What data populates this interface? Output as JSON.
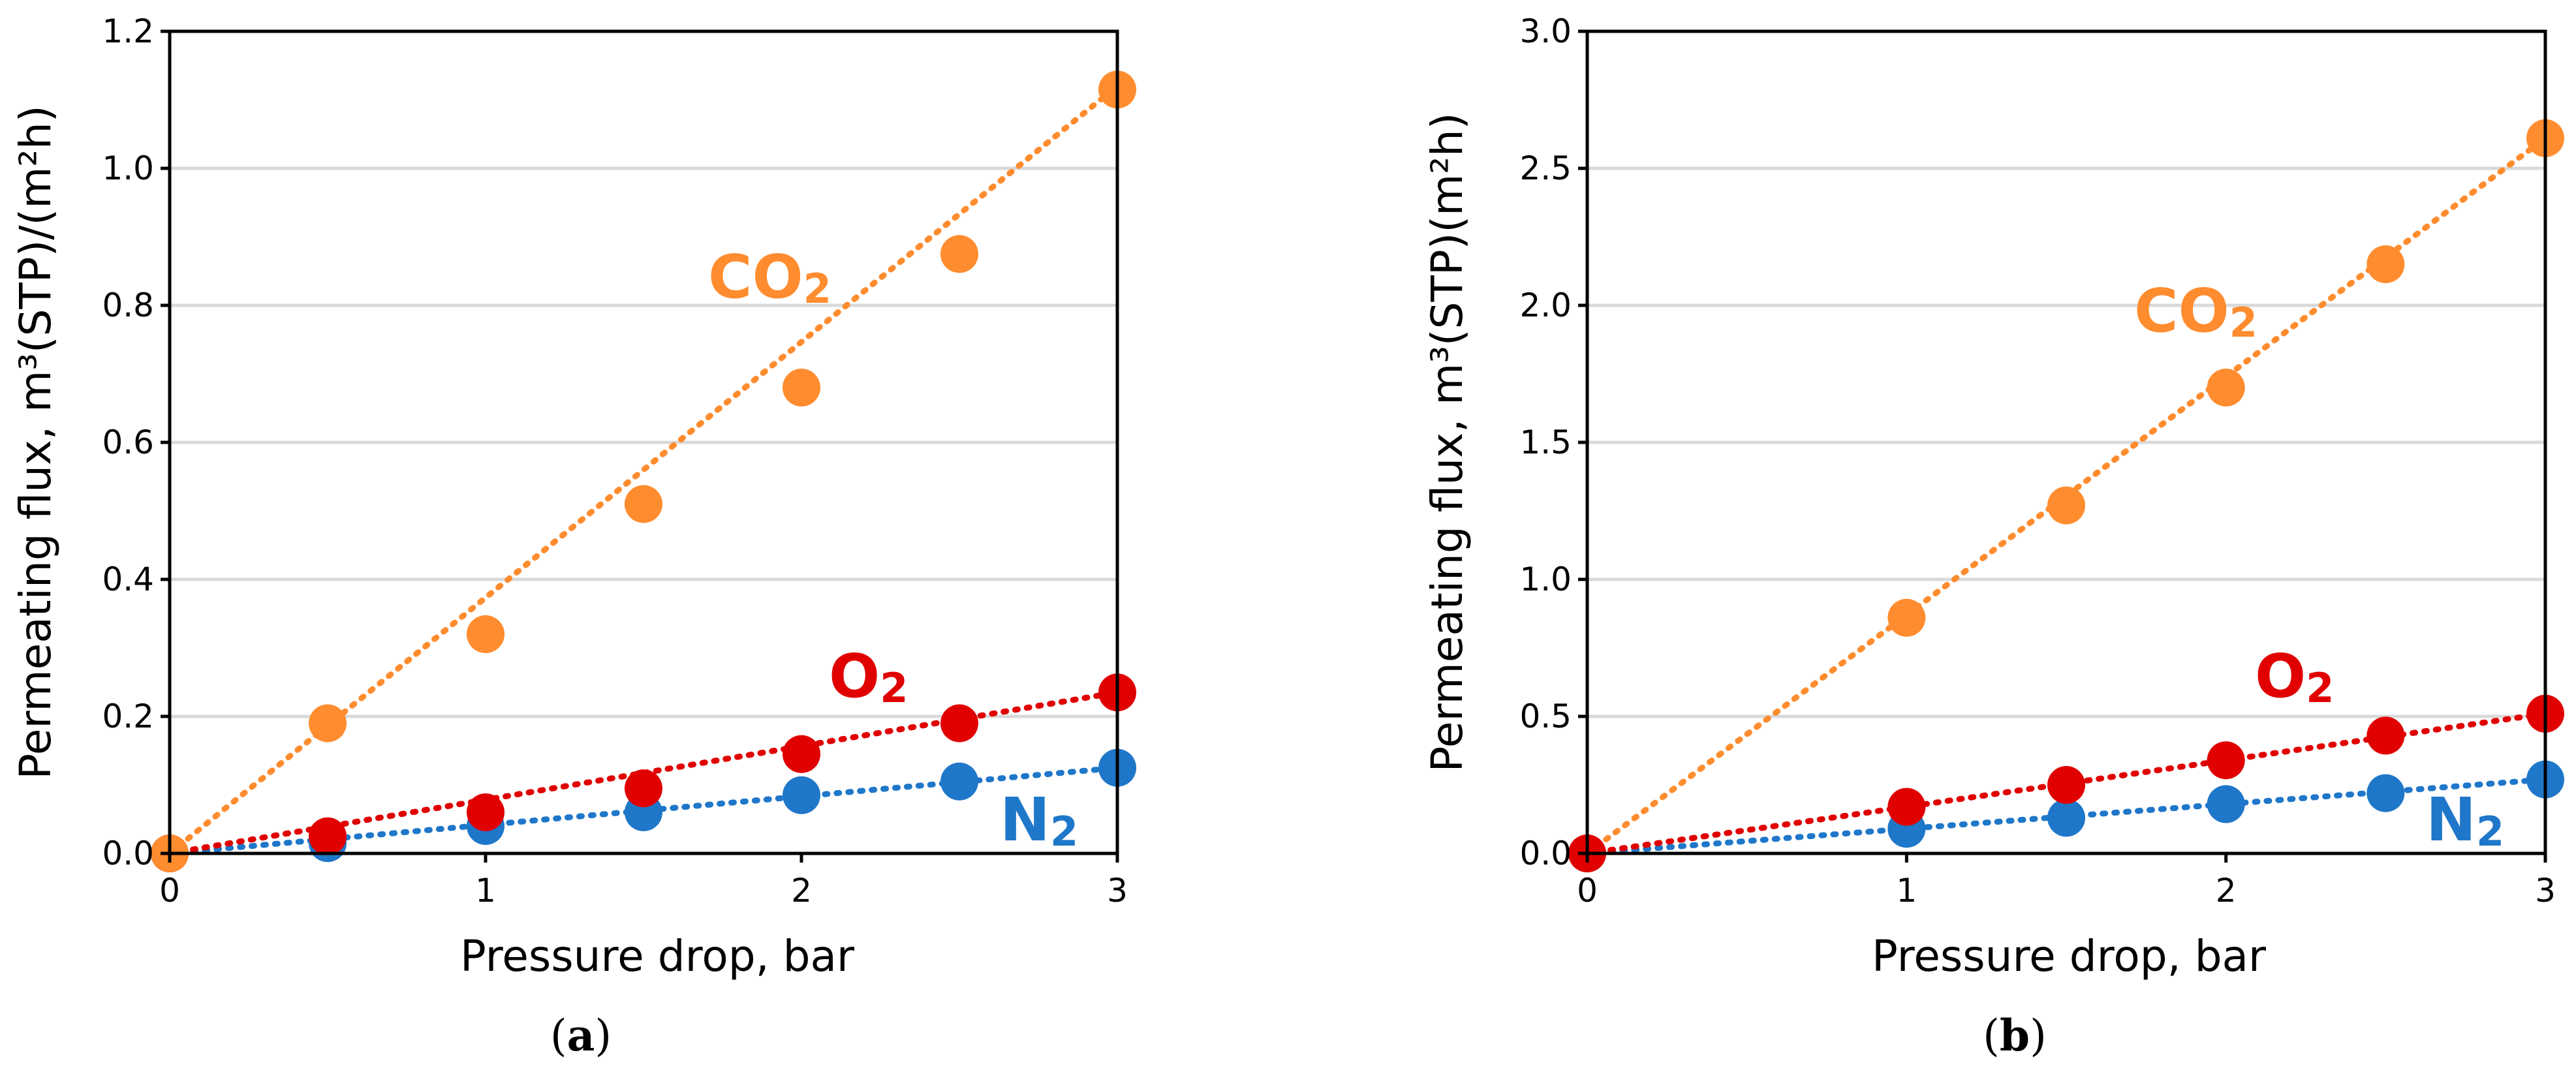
{
  "chart_data": [
    {
      "type": "scatter",
      "panel_label": "a",
      "xlabel": "Pressure drop, bar",
      "ylabel": "Permeating flux, m³(STP)/(m²h)",
      "xlim": [
        0,
        3
      ],
      "ylim": [
        0,
        1.2
      ],
      "xticks": [
        "0",
        "1",
        "2",
        "3"
      ],
      "yticks": [
        "0.0",
        "0.2",
        "0.4",
        "0.6",
        "0.8",
        "1.0",
        "1.2"
      ],
      "grid": true,
      "series": [
        {
          "name": "N2",
          "label_main": "N",
          "label_sub": "2",
          "color": "#1f77c9",
          "x": [
            0,
            0.5,
            1,
            1.5,
            2,
            2.5,
            3
          ],
          "y": [
            0,
            0.015,
            0.04,
            0.06,
            0.085,
            0.105,
            0.125
          ],
          "trend_end": 0.125
        },
        {
          "name": "O2",
          "label_main": "O",
          "label_sub": "2",
          "color": "#e00000",
          "x": [
            0,
            0.5,
            1,
            1.5,
            2,
            2.5,
            3
          ],
          "y": [
            0,
            0.025,
            0.06,
            0.095,
            0.145,
            0.19,
            0.235
          ],
          "trend_end": 0.235
        },
        {
          "name": "CO2",
          "label_main": "CO",
          "label_sub": "2",
          "color": "#ff8c2e",
          "x": [
            0,
            0.5,
            1,
            1.5,
            2,
            2.5,
            3
          ],
          "y": [
            0,
            0.19,
            0.32,
            0.51,
            0.68,
            0.875,
            1.115
          ],
          "trend_end": 1.12
        }
      ]
    },
    {
      "type": "scatter",
      "panel_label": "b",
      "xlabel": "Pressure drop, bar",
      "ylabel": "Permeating flux, m³(STP)(m²h)",
      "xlim": [
        0,
        3
      ],
      "ylim": [
        0,
        3.0
      ],
      "xticks": [
        "0",
        "1",
        "2",
        "3"
      ],
      "yticks": [
        "0.0",
        "0.5",
        "1.0",
        "1.5",
        "2.0",
        "2.5",
        "3.0"
      ],
      "grid": true,
      "series": [
        {
          "name": "N2",
          "label_main": "N",
          "label_sub": "2",
          "color": "#1f77c9",
          "x": [
            0,
            1,
            1.5,
            2,
            2.5,
            3
          ],
          "y": [
            0,
            0.09,
            0.13,
            0.18,
            0.22,
            0.27
          ],
          "trend_end": 0.27
        },
        {
          "name": "CO2",
          "label_main": "CO",
          "label_sub": "2",
          "color": "#ff8c2e",
          "x": [
            0,
            1,
            1.5,
            2,
            2.5,
            3
          ],
          "y": [
            0,
            0.86,
            1.27,
            1.7,
            2.15,
            2.61
          ],
          "trend_end": 2.61
        },
        {
          "name": "O2",
          "label_main": "O",
          "label_sub": "2",
          "color": "#e00000",
          "x": [
            0,
            1,
            1.5,
            2,
            2.5,
            3
          ],
          "y": [
            0,
            0.17,
            0.25,
            0.34,
            0.43,
            0.51
          ],
          "trend_end": 0.51
        }
      ]
    }
  ]
}
